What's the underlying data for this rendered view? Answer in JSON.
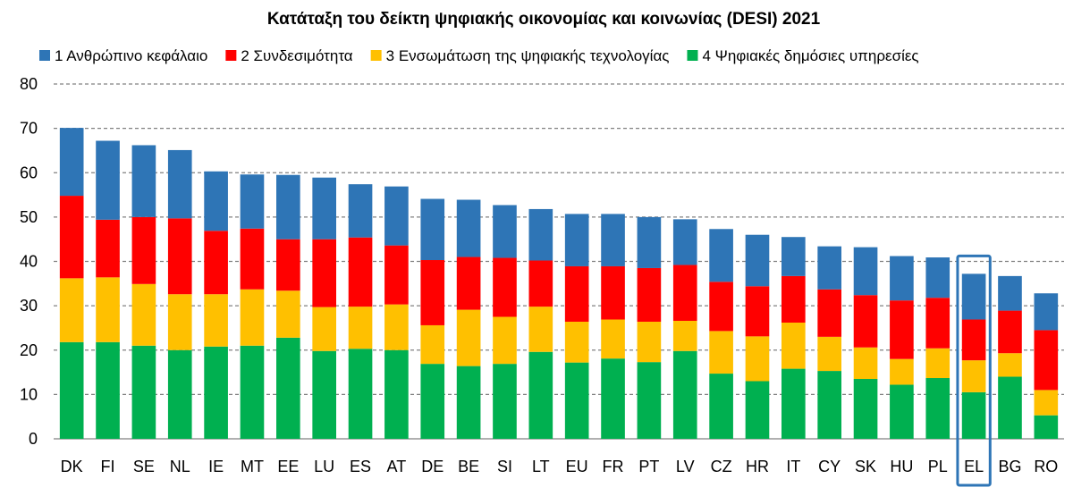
{
  "chart_data": {
    "type": "bar",
    "stacked": true,
    "title": "Κατάταξη του δείκτη ψηφιακής οικονομίας και κοινωνίας (DESI) 2021",
    "xlabel": "",
    "ylabel": "",
    "ylim": [
      0,
      80
    ],
    "yticks": [
      0,
      10,
      20,
      30,
      40,
      50,
      60,
      70,
      80
    ],
    "grid": true,
    "legend_position": "top",
    "categories": [
      "DK",
      "FI",
      "SE",
      "NL",
      "IE",
      "MT",
      "EE",
      "LU",
      "ES",
      "AT",
      "DE",
      "BE",
      "SI",
      "LT",
      "EU",
      "FR",
      "PT",
      "LV",
      "CZ",
      "HR",
      "IT",
      "CY",
      "SK",
      "HU",
      "PL",
      "EL",
      "BG",
      "RO"
    ],
    "highlight_category": "EL",
    "highlight_color": "#2E75B6",
    "series": [
      {
        "name": "4 Ψηφιακές δημόσιες υπηρεσίες",
        "color": "#00B050",
        "values": [
          21.8,
          21.8,
          21.0,
          20.0,
          20.8,
          21.0,
          22.8,
          19.8,
          20.3,
          20.0,
          16.9,
          16.4,
          16.9,
          19.6,
          17.2,
          18.1,
          17.3,
          19.8,
          14.7,
          13.0,
          15.8,
          15.3,
          13.5,
          12.2,
          13.7,
          10.5,
          14.0,
          5.3
        ]
      },
      {
        "name": "3 Ενσωμάτωση της ψηφιακής τεχνολογίας",
        "color": "#FFC000",
        "values": [
          14.4,
          14.6,
          13.9,
          12.6,
          11.8,
          12.7,
          10.6,
          9.9,
          9.5,
          10.3,
          8.7,
          12.7,
          10.6,
          10.2,
          9.2,
          8.8,
          9.1,
          6.8,
          9.6,
          10.1,
          10.4,
          7.7,
          7.1,
          5.8,
          6.7,
          7.2,
          5.3,
          5.7
        ]
      },
      {
        "name": "2 Συνδεσιμότητα",
        "color": "#FF0000",
        "values": [
          18.6,
          13.0,
          15.1,
          17.1,
          14.3,
          13.7,
          11.6,
          15.3,
          15.6,
          13.3,
          14.7,
          11.9,
          13.3,
          10.4,
          12.5,
          12.0,
          12.1,
          12.6,
          11.1,
          11.3,
          10.5,
          10.7,
          11.8,
          13.2,
          11.4,
          9.2,
          9.6,
          13.5
        ]
      },
      {
        "name": "1 Ανθρώπινο κεφάλαιο",
        "color": "#2E75B6",
        "values": [
          15.3,
          17.8,
          16.2,
          15.4,
          13.4,
          12.2,
          14.5,
          13.9,
          12.0,
          13.3,
          13.8,
          12.9,
          11.9,
          11.6,
          11.8,
          11.8,
          11.5,
          10.3,
          11.9,
          11.6,
          8.8,
          9.7,
          10.8,
          10.0,
          9.1,
          10.3,
          7.8,
          8.3
        ]
      }
    ]
  }
}
